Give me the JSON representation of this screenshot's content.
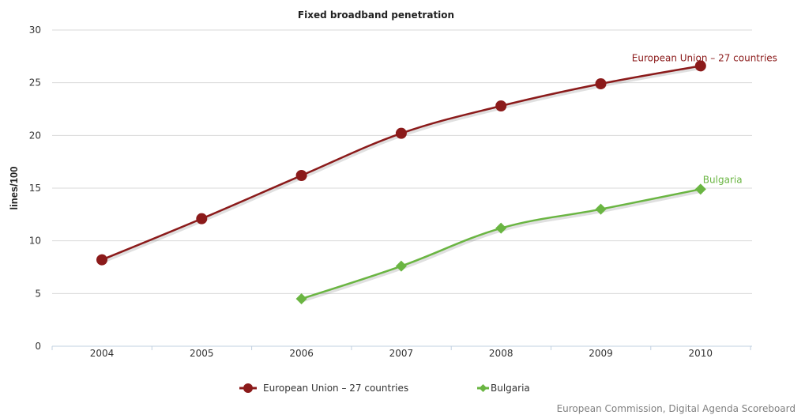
{
  "chart_data": {
    "type": "line",
    "title": "Fixed broadband penetration",
    "ylabel": "lines/100",
    "xlabel": "",
    "categories": [
      "2004",
      "2005",
      "2006",
      "2007",
      "2008",
      "2009",
      "2010"
    ],
    "ylim": [
      0,
      30
    ],
    "yticks": [
      0,
      5,
      10,
      15,
      20,
      25,
      30
    ],
    "grid": true,
    "legend_position": "bottom",
    "series": [
      {
        "name": "European Union - 27 countries",
        "label": "European Union – 27 countries",
        "end_label": "European Union – 27 countries",
        "color": "#8b1a1a",
        "marker": "circle",
        "values": [
          8.2,
          12.1,
          16.2,
          20.2,
          22.8,
          24.9,
          26.6
        ]
      },
      {
        "name": "Bulgaria",
        "label": "Bulgaria",
        "end_label": "Bulgaria",
        "color": "#6ab542",
        "marker": "diamond",
        "values": [
          null,
          null,
          4.5,
          7.6,
          11.2,
          13.0,
          14.9
        ]
      }
    ],
    "credit": "European Commission, Digital Agenda Scoreboard"
  }
}
